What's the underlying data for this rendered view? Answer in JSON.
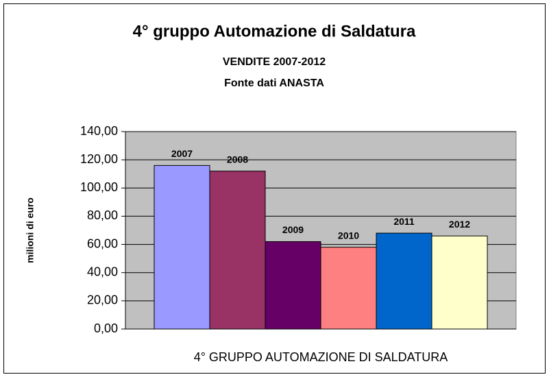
{
  "chart_data": {
    "type": "bar",
    "title": "4° gruppo Automazione di Saldatura",
    "subtitle": [
      "VENDITE 2007-2012",
      "Fonte dati ANASTA"
    ],
    "y_label": "milioni di euro",
    "categories": [
      "4° GRUPPO AUTOMAZIONE DI SALDATURA"
    ],
    "series": [
      {
        "name": "2007",
        "color": "#9999ff",
        "values": [
          116
        ]
      },
      {
        "name": "2008",
        "color": "#993366",
        "values": [
          112
        ]
      },
      {
        "name": "2009",
        "color": "#660066",
        "values": [
          62
        ]
      },
      {
        "name": "2010",
        "color": "#ff8080",
        "values": [
          58
        ]
      },
      {
        "name": "2011",
        "color": "#0066cc",
        "values": [
          68
        ]
      },
      {
        "name": "2012",
        "color": "#ffffcc",
        "values": [
          66
        ]
      }
    ],
    "ylim": [
      0,
      140
    ],
    "yticks": [
      {
        "value": 0,
        "label": "0,00"
      },
      {
        "value": 20,
        "label": "20,00"
      },
      {
        "value": 40,
        "label": "40,00"
      },
      {
        "value": 60,
        "label": "60,00"
      },
      {
        "value": 80,
        "label": "80,00"
      },
      {
        "value": 100,
        "label": "100,00"
      },
      {
        "value": 120,
        "label": "120,00"
      },
      {
        "value": 140,
        "label": "140,00"
      }
    ],
    "grid": true,
    "plot_background": "#c0c0c0"
  }
}
